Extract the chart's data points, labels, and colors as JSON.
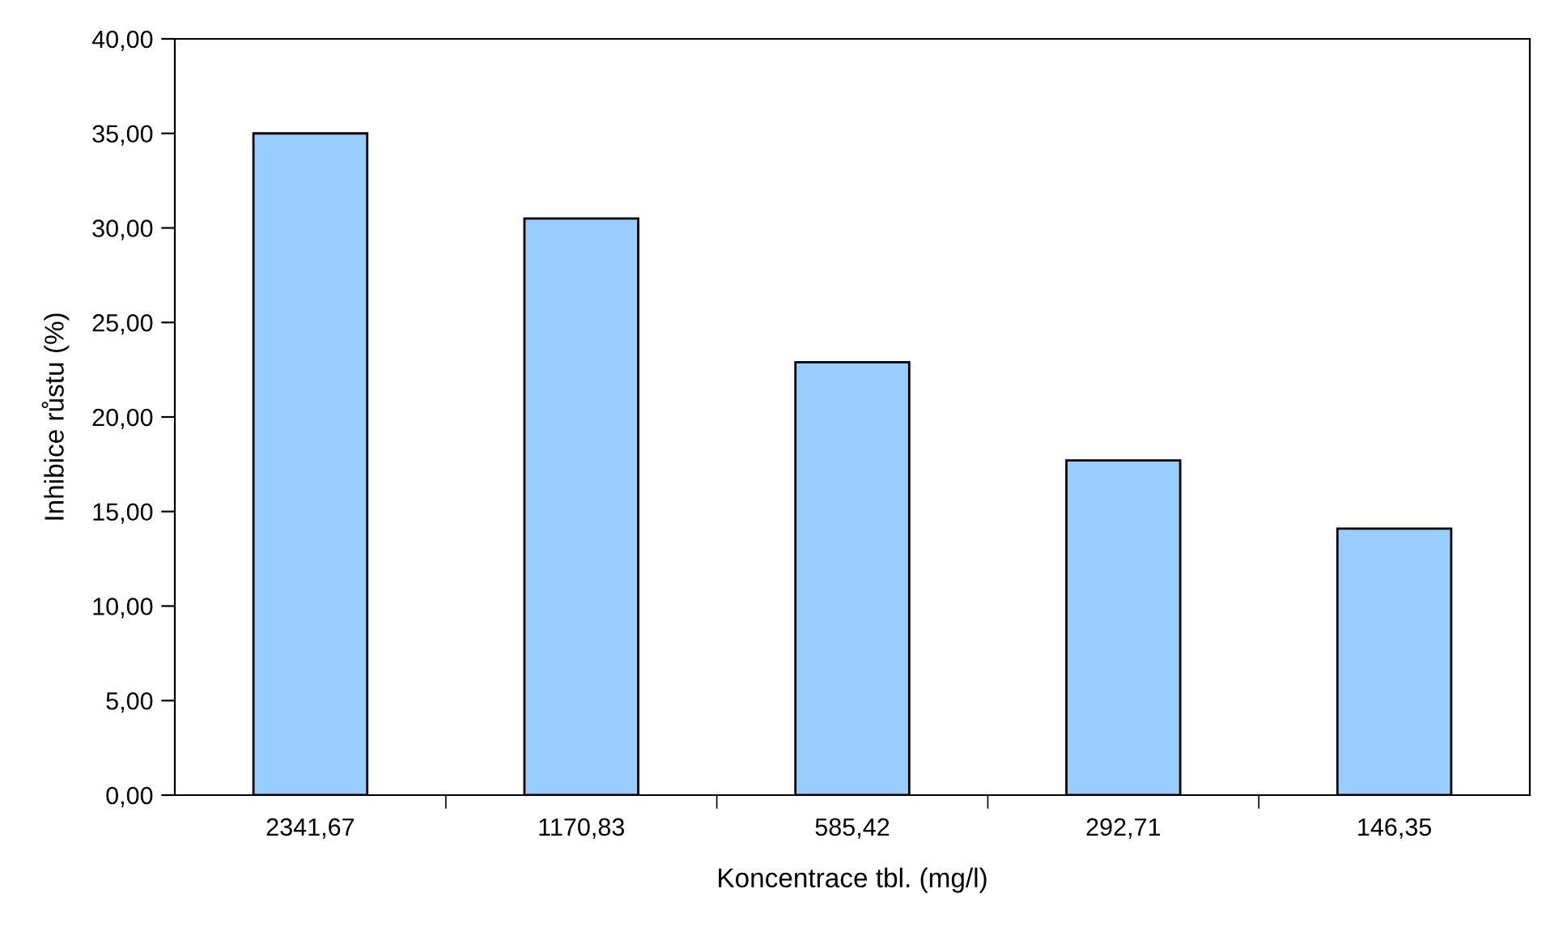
{
  "chart_data": {
    "type": "bar",
    "xlabel": "Koncentrace tbl. (mg/l)",
    "ylabel": "Inhibice růstu (%)",
    "categories": [
      "2341,67",
      "1170,83",
      "585,42",
      "292,71",
      "146,35"
    ],
    "values": [
      35.0,
      30.5,
      22.9,
      17.7,
      14.1
    ],
    "color": "#99ccff",
    "ylim": [
      0,
      40
    ],
    "yticks": [
      {
        "value": 0,
        "label": "0,00"
      },
      {
        "value": 5,
        "label": "5,00"
      },
      {
        "value": 10,
        "label": "10,00"
      },
      {
        "value": 15,
        "label": "15,00"
      },
      {
        "value": 20,
        "label": "20,00"
      },
      {
        "value": 25,
        "label": "25,00"
      },
      {
        "value": 30,
        "label": "30,00"
      },
      {
        "value": 35,
        "label": "35,00"
      },
      {
        "value": 40,
        "label": "40,00"
      }
    ],
    "grid": false,
    "legend": false
  }
}
